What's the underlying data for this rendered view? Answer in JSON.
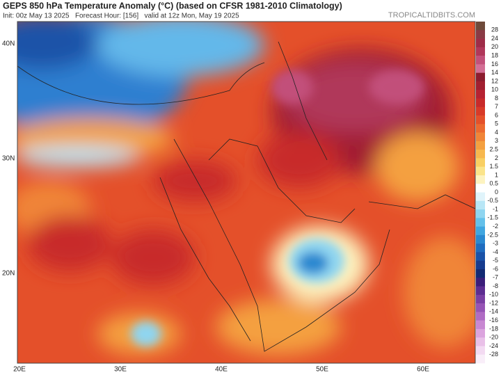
{
  "header": {
    "title": "GEPS 850 hPa Temperature Anomaly (°C) (based on CFSR 1981-2010 Climatology)",
    "info": "Init: 00z May 13 2025   Forecast Hour: [156]   valid at 12z Mon, May 19 2025",
    "credit": "TROPICALTIDBITS.COM"
  },
  "map": {
    "lat_labels": [
      "40N",
      "30N",
      "20N"
    ],
    "lon_labels": [
      "20E",
      "30E",
      "40E",
      "50E",
      "60E"
    ]
  },
  "colorbar": {
    "labels": [
      28,
      24,
      20,
      18,
      16,
      14,
      12,
      10,
      8,
      7,
      6,
      5,
      4,
      3,
      2.5,
      2,
      1.5,
      1,
      0.5,
      0,
      -0.5,
      -1,
      -1.5,
      -2,
      -2.5,
      -3,
      -4,
      -5,
      -6,
      -7,
      -8,
      -10,
      -12,
      -14,
      -16,
      -18,
      -20,
      -24,
      -28
    ],
    "colors": [
      "#6e4a3a",
      "#8a3a45",
      "#9e2c48",
      "#b0375a",
      "#c2507a",
      "#d36e95",
      "#8c1c2e",
      "#a11f30",
      "#b62232",
      "#c82a2a",
      "#d83a28",
      "#e4502a",
      "#ec6a30",
      "#f08538",
      "#f4a040",
      "#f7b84e",
      "#f9cf62",
      "#fbe48a",
      "#fdf3c0",
      "#ffffff",
      "#e0f4fb",
      "#b8e6f6",
      "#8fd5f0",
      "#64c0ea",
      "#40a6e0",
      "#2a88d0",
      "#1f6cbf",
      "#1a52a8",
      "#163b8e",
      "#122a73",
      "#3a1e7a",
      "#5c2d91",
      "#7a3fa3",
      "#9654b5",
      "#b06cc4",
      "#c888d2",
      "#dba4de",
      "#e9c0e8",
      "#f3daf2",
      "#f9eef9"
    ]
  }
}
